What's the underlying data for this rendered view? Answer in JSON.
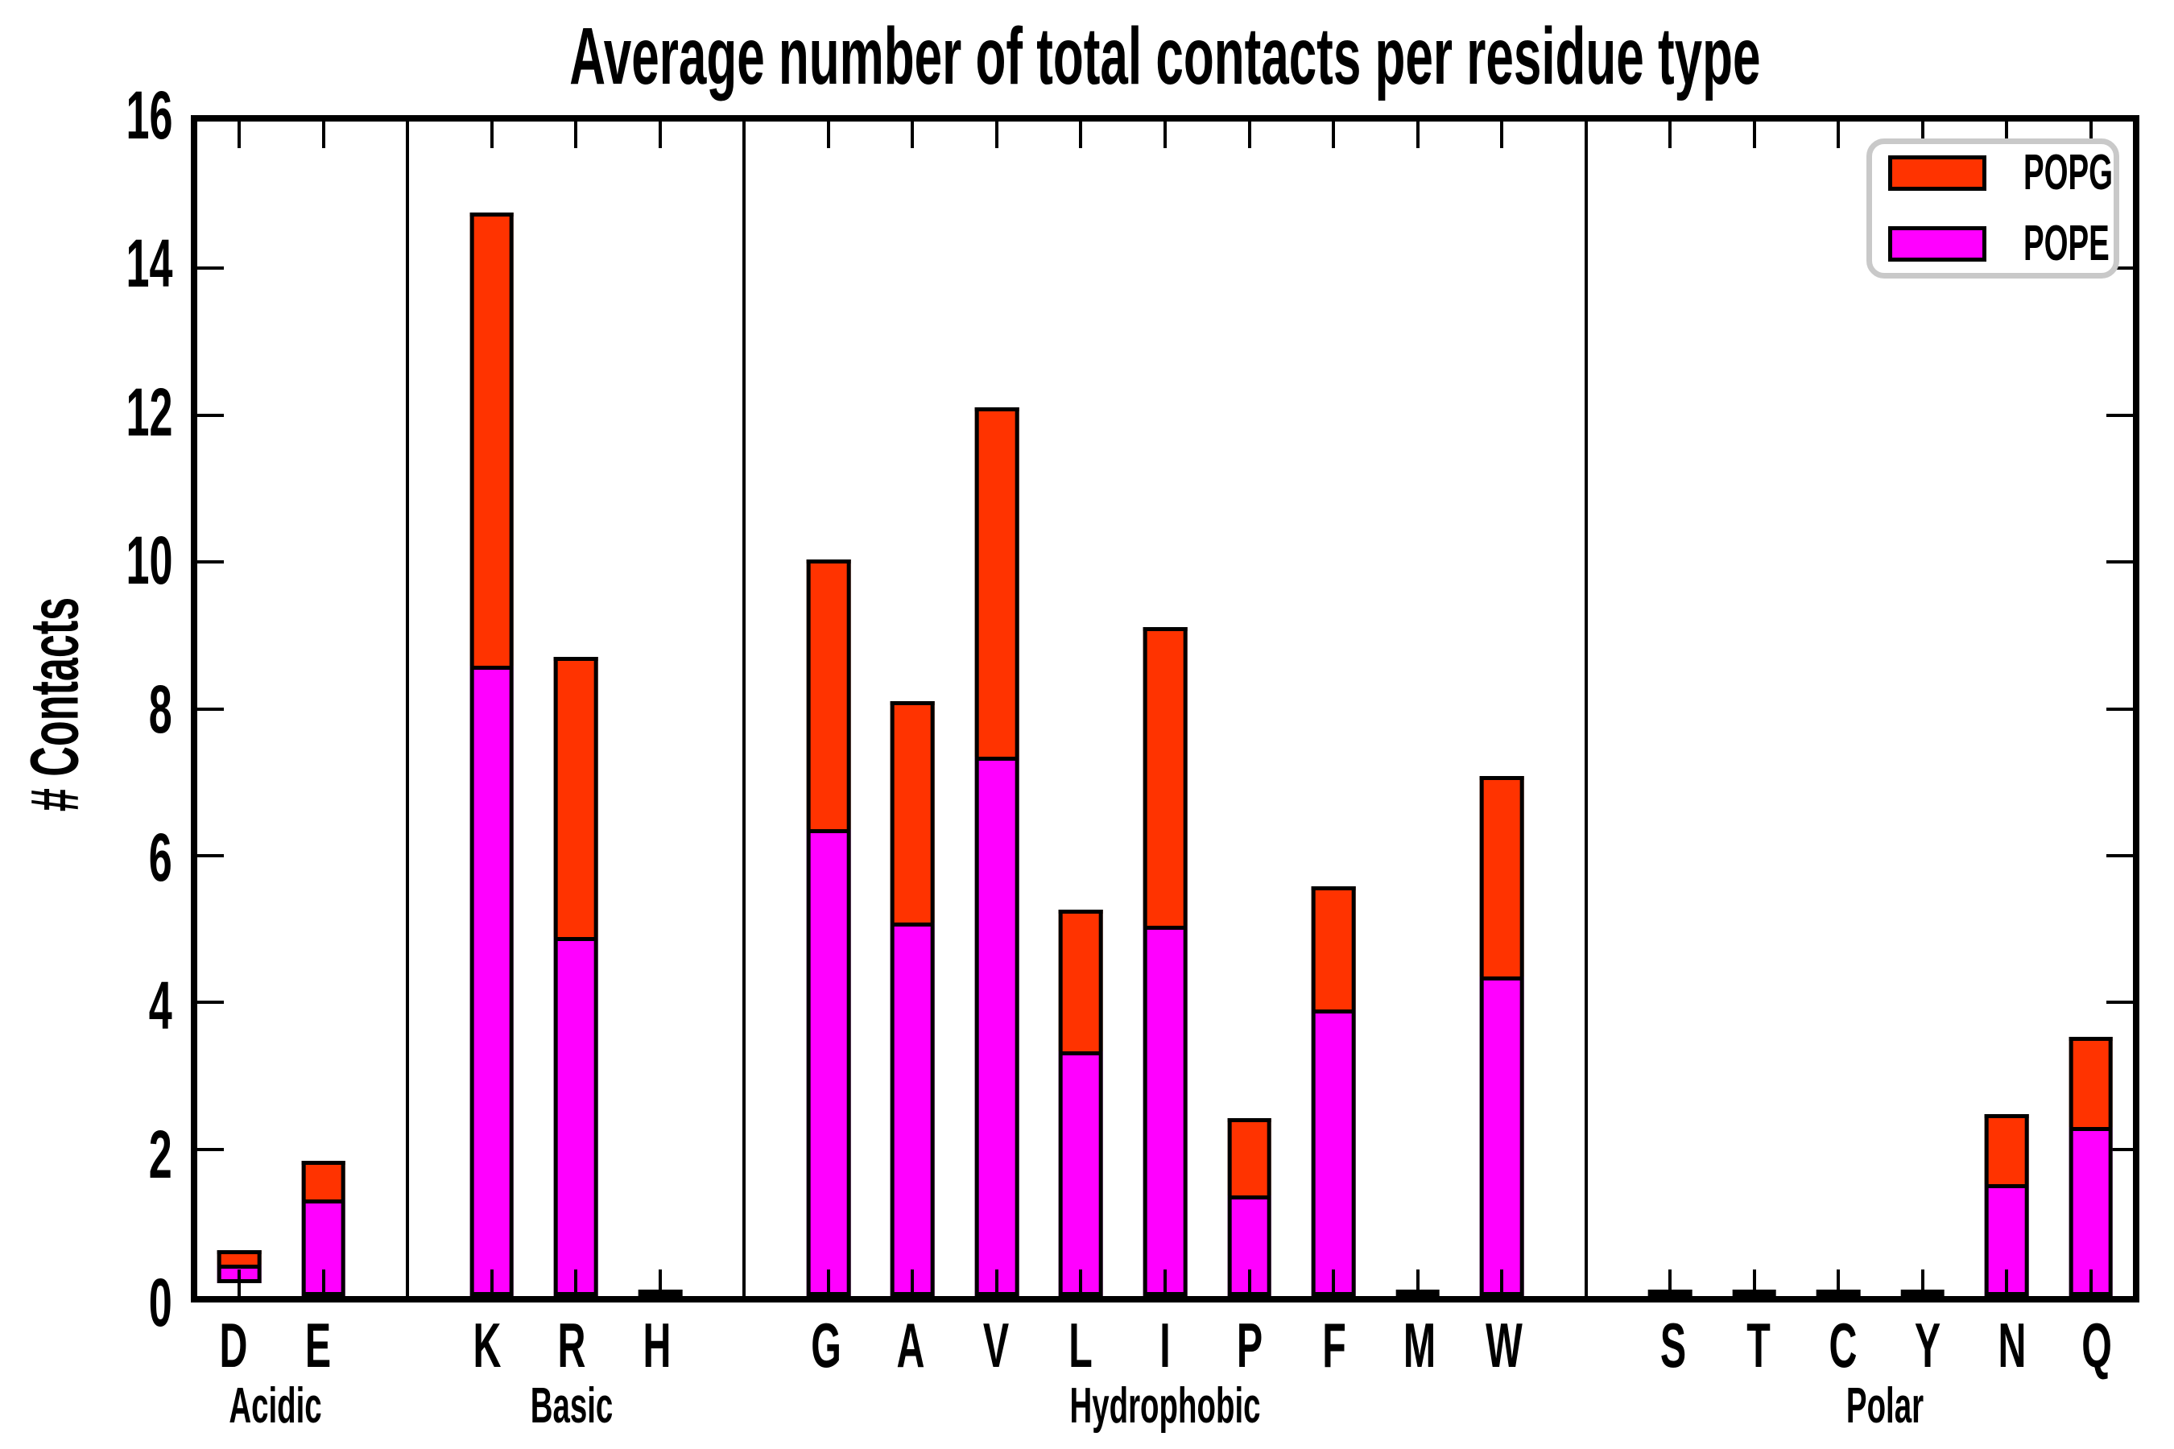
{
  "title": "Average number of total contacts per residue type",
  "ylabel": "# Contacts",
  "legend": [
    {
      "label": "POPG",
      "color": "#ff3300"
    },
    {
      "label": "POPE",
      "color": "#ff00ff"
    }
  ],
  "chart_data": {
    "type": "bar",
    "stacked": true,
    "title": "Average number of total contacts per residue type",
    "xlabel": "",
    "ylabel": "# Contacts",
    "ylim": [
      0,
      16
    ],
    "yticks": [
      0,
      2,
      4,
      6,
      8,
      10,
      12,
      14,
      16
    ],
    "grid": false,
    "legend_position": "upper right",
    "series_order_bottom_to_top": [
      "POPE",
      "POPG"
    ],
    "colors": {
      "POPG": "#ff3300",
      "POPE": "#ff00ff"
    },
    "groups": [
      {
        "label": "Acidic",
        "residues": [
          {
            "code": "D",
            "POPE": 0.33,
            "POPG": 0.29
          },
          {
            "code": "E",
            "POPE": 1.32,
            "POPG": 0.52
          }
        ]
      },
      {
        "label": "Basic",
        "residues": [
          {
            "code": "K",
            "POPE": 8.57,
            "POPG": 6.19
          },
          {
            "code": "R",
            "POPE": 4.87,
            "POPG": 3.84
          },
          {
            "code": "H",
            "POPE": 0.02,
            "POPG": 0.02
          }
        ]
      },
      {
        "label": "Hydrophobic",
        "residues": [
          {
            "code": "G",
            "POPE": 6.35,
            "POPG": 3.68
          },
          {
            "code": "A",
            "POPE": 5.08,
            "POPG": 3.02
          },
          {
            "code": "V",
            "POPE": 7.34,
            "POPG": 4.77
          },
          {
            "code": "L",
            "POPE": 3.33,
            "POPG": 1.93
          },
          {
            "code": "I",
            "POPE": 5.03,
            "POPG": 4.08
          },
          {
            "code": "P",
            "POPE": 1.35,
            "POPG": 1.07
          },
          {
            "code": "F",
            "POPE": 3.91,
            "POPG": 1.67
          },
          {
            "code": "M",
            "POPE": 0.02,
            "POPG": 0.02
          },
          {
            "code": "W",
            "POPE": 4.35,
            "POPG": 2.73
          }
        ]
      },
      {
        "label": "Polar",
        "residues": [
          {
            "code": "S",
            "POPE": 0.02,
            "POPG": 0.02
          },
          {
            "code": "T",
            "POPE": 0.02,
            "POPG": 0.02
          },
          {
            "code": "C",
            "POPE": 0.02,
            "POPG": 0.02
          },
          {
            "code": "Y",
            "POPE": 0.02,
            "POPG": 0.02
          },
          {
            "code": "N",
            "POPE": 1.51,
            "POPG": 0.97
          },
          {
            "code": "Q",
            "POPE": 2.3,
            "POPG": 1.23
          }
        ]
      }
    ]
  }
}
